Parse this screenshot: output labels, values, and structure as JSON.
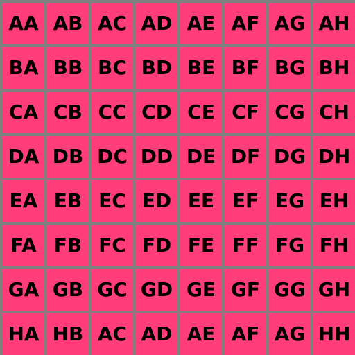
{
  "colors": {
    "cell_background": "#ff3d7a",
    "grid_line": "#808080",
    "text": "#000000"
  },
  "grid": {
    "rows": [
      [
        "AA",
        "AB",
        "AC",
        "AD",
        "AE",
        "AF",
        "AG",
        "AH"
      ],
      [
        "BA",
        "BB",
        "BC",
        "BD",
        "BE",
        "BF",
        "BG",
        "BH"
      ],
      [
        "CA",
        "CB",
        "CC",
        "CD",
        "CE",
        "CF",
        "CG",
        "CH"
      ],
      [
        "DA",
        "DB",
        "DC",
        "DD",
        "DE",
        "DF",
        "DG",
        "DH"
      ],
      [
        "EA",
        "EB",
        "EC",
        "ED",
        "EE",
        "EF",
        "EG",
        "EH"
      ],
      [
        "FA",
        "FB",
        "FC",
        "FD",
        "FE",
        "FF",
        "FG",
        "FH"
      ],
      [
        "GA",
        "GB",
        "GC",
        "GD",
        "GE",
        "GF",
        "GG",
        "GH"
      ],
      [
        "HA",
        "HB",
        "AC",
        "AD",
        "AE",
        "AF",
        "AG",
        "HH"
      ]
    ]
  }
}
